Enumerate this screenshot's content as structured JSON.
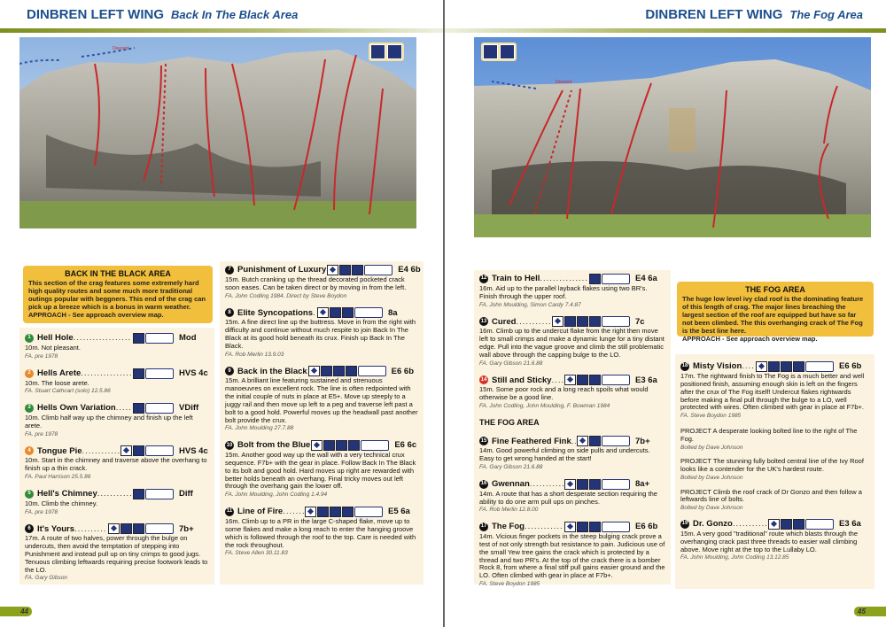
{
  "left": {
    "header": {
      "title": "DINBREN LEFT WING",
      "subtitle": "Back In The Black Area"
    },
    "photo": {
      "descent_label": "Descent",
      "badges": [
        "sun-aspect-icon",
        "approach-walker-icon"
      ]
    },
    "info": {
      "title": "BACK IN THE BLACK AREA",
      "text": "This section of the crag features some extremely hard high quality routes and some much more traditional outings popular with beggners. This end of the crag can pick up a breeze which is a bonus in warm weather.",
      "approach": "APPROACH - See approach overview map."
    },
    "col1": [
      {
        "num": "1",
        "color": "#2e8b3a",
        "name": "Hell Hole",
        "icons": 1,
        "grade": "Mod",
        "desc": "10m. Not pleasant.",
        "fa": "FA. pre 1978"
      },
      {
        "num": "2",
        "color": "#e8892a",
        "name": "Hells Arete",
        "icons": 1,
        "grade": "HVS 4c",
        "desc": "10m. The loose arete.",
        "fa": "FA. Stuart Cathcart (solo) 12.5.86"
      },
      {
        "num": "3",
        "color": "#2e8b3a",
        "name": "Hells Own Variation",
        "icons": 1,
        "grade": "VDiff",
        "desc": "10m. Climb half way up the chimney and finish up the left arete.",
        "fa": "FA. pre 1978"
      },
      {
        "num": "4",
        "color": "#e8892a",
        "name": "Tongue Pie",
        "icons": 2,
        "grade": "HVS 4c",
        "desc": "10m. Start in the chimney and traverse above the overhang to finish up a thin crack.",
        "fa": "FA. Paul Harrison 25.5.86"
      },
      {
        "num": "5",
        "color": "#2e8b3a",
        "name": "Hell's Chimney",
        "icons": 1,
        "grade": "Diff",
        "desc": "10m. Climb the chimney.",
        "fa": "FA. pre 1978"
      },
      {
        "num": "6",
        "color": "#111",
        "name": "It's Yours",
        "icons": 3,
        "grade": "7b+",
        "desc": "17m. A route of two halves, power through the bulge on undercuts, then avoid the temptation of stepping into Punishment and instead pull up on tiny crimps to good jugs. Tenuous climbing leftwards requiring precise footwork leads to the LO.",
        "fa": "FA. Gary Gibson"
      }
    ],
    "col2": [
      {
        "num": "7",
        "color": "#111",
        "name": "Punishment of Luxury",
        "icons": 3,
        "grade": "E4 6b",
        "desc": "15m. Butch cranking up the thread decorated pocketed crack soon eases. Can be taken direct or by moving in from the left.",
        "fa": "FA. John Codling 1984. Direct by Steve Boydon"
      },
      {
        "num": "8",
        "color": "#111",
        "name": "Elite Syncopations",
        "icons": 3,
        "grade": "8a",
        "desc": "15m. A fine direct line up the buttress. Move in from the right with difficulty and continue without much respite to join Back In The Black at its good hold beneath its crux. Finish up Back In The Black.",
        "fa": "FA. Rob Merlin 13.9.03"
      },
      {
        "num": "9",
        "color": "#111",
        "name": "Back in the Black",
        "icons": 4,
        "grade": "E6 6b",
        "desc": "15m. A brilliant line featuring sustained and strenuous manoeuvres on excellent rock. The line is often redpointed with the initial couple of nuts in place at E5+. Move up steeply to a juggy rail and then move up left to a peg and traverse left past a bolt to a good hold. Powerful moves up the headwall past another bolt provide the crux.",
        "fa": "FA. John Moulding 27.7.88"
      },
      {
        "num": "10",
        "color": "#111",
        "name": "Bolt from the Blue",
        "icons": 4,
        "grade": "E6 6c",
        "desc": "15m. Another good way up the wall with a very technical crux sequence. F7b+ with the gear in place. Follow Back In The Black to its bolt and good hold. Hard moves up right are rewarded with better holds beneath an overhang. Final tricky moves out left through the overhang gain the lower off.",
        "fa": "FA. John Moulding, John Codling 1.4.94"
      },
      {
        "num": "11",
        "color": "#111",
        "name": "Line of Fire",
        "icons": 4,
        "grade": "E5 6a",
        "desc": "16m. Climb up to a PR in the large C-shaped flake, move up to some flakes and make a long reach to enter the hanging groove which is followed through the roof to the top. Care is needed with the rock throughout.",
        "fa": "FA. Steve Allen 30.11.83"
      }
    ],
    "page_number": "44"
  },
  "right": {
    "header": {
      "title": "DINBREN LEFT WING",
      "subtitle": "The Fog Area"
    },
    "photo": {
      "descent_label": "Descent",
      "badges": [
        "sun-aspect-icon",
        "approach-walker-icon"
      ]
    },
    "info": {
      "title": "THE FOG AREA",
      "text": "The huge low level ivy clad roof is the dominating feature of this length of crag. The major lines breaching the largest section of the roof are equipped but have so far not been climbed. The this overhanging crack of The Fog is the best line here.",
      "approach": "APPROACH - See approach overview map."
    },
    "col1": [
      {
        "num": "12",
        "color": "#111",
        "name": "Train to Hell",
        "icons": 1,
        "grade": "E4 6a",
        "desc": "16m. Aid up to the parallel layback flakes using two BR's. Finish through the upper roof.",
        "fa": "FA. John Moulding, Simon Cardy 7.4.87"
      },
      {
        "num": "13",
        "color": "#111",
        "name": "Cured",
        "icons": 4,
        "grade": "7c",
        "desc": "16m. Climb up to the undercut flake from the right then move left to small crimps and make a dynamic lunge for a tiny distant edge. Pull into the vague groove and climb the still problematic wall above through the capping bulge to the LO.",
        "fa": "FA. Gary Gibson 21.6.88"
      },
      {
        "num": "14",
        "color": "#d8312a",
        "name": "Still and Sticky",
        "icons": 3,
        "grade": "E3 6a",
        "desc": "15m. Some poor rock and a long reach spoils what would otherwise be a good line.",
        "fa": "FA. John Codling, John Moulding, F. Bowman 1984"
      }
    ],
    "section_title": "THE FOG AREA",
    "col1b": [
      {
        "num": "15",
        "color": "#111",
        "name": "Fine Feathered Fink",
        "icons": 2,
        "grade": "7b+",
        "desc": "14m. Good powerful climbing on side pulls and undercuts. Easy to get wrong handed at the start!",
        "fa": "FA. Gary Gibson 21.6.88"
      },
      {
        "num": "16",
        "color": "#111",
        "name": "Gwennan",
        "icons": 3,
        "grade": "8a+",
        "desc": "14m. A route that has a short desperate section requiring the ability to do one arm pull ups on pinches.",
        "fa": "FA. Rob Merlin 12.8.00"
      },
      {
        "num": "17",
        "color": "#111",
        "name": "The Fog",
        "icons": 3,
        "grade": "E6 6b",
        "desc": "14m. Vicious finger pockets in the steep bulging crack prove a test of not only strength but resistance to pain. Judicious use of the small Yew tree gains the crack which is protected by a thread and two PR's. At the top of the crack there is a bomber Rock 8, from where a final stiff pull gains easier ground and the LO. Often climbed with gear in place at F7b+.",
        "fa": "FA. Steve Boydon 1985"
      }
    ],
    "col2": [
      {
        "num": "18",
        "color": "#111",
        "name": "Misty Vision",
        "icons": 4,
        "grade": "E6 6b",
        "desc": "17m. The rightward finish to The Fog is a much better and well positioned finish, assuming enough skin is left on the fingers after the crux of The Fog itself! Undercut flakes rightwards before making a final pull through the bulge to a LO, well protected with wires. Often climbed with gear in place at F7b+.",
        "fa": "FA. Steve Boydon 1985"
      }
    ],
    "projects": [
      {
        "text": "PROJECT A desperate looking bolted line to the right of The Fog.",
        "fa": "Bolted by Dave Johnson"
      },
      {
        "text": "PROJECT The stunning fully bolted central line of the Ivy Roof looks like a contender for the UK's hardest route.",
        "fa": "Bolted by Dave Johnson"
      },
      {
        "text": "PROJECT Climb the roof crack of Dr Gonzo and then follow a leftwards line of bolts.",
        "fa": "Bolted by Dave Johnson"
      }
    ],
    "col2b": [
      {
        "num": "19",
        "color": "#111",
        "name": "Dr. Gonzo",
        "icons": 3,
        "grade": "E3 6a",
        "desc": "15m. A very good \"traditional\" route which blasts through the overhanging crack past three threads to easier wall climbing above. Move right at the top to the Lullaby LO.",
        "fa": "FA. John Moulding, John Codling 13.12.85"
      }
    ],
    "page_number": "45"
  },
  "colors": {
    "accent_blue": "#1c4f8c",
    "info_box": "#f1bf3c",
    "panel": "#fbf3df",
    "rule_green": "#7d8f1d",
    "route_line": "#c8282a"
  }
}
